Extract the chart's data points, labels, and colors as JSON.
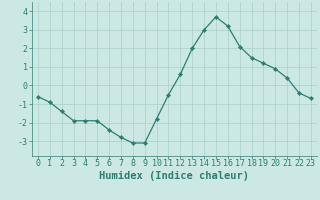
{
  "x": [
    0,
    1,
    2,
    3,
    4,
    5,
    6,
    7,
    8,
    9,
    10,
    11,
    12,
    13,
    14,
    15,
    16,
    17,
    18,
    19,
    20,
    21,
    22,
    23
  ],
  "y": [
    -0.6,
    -0.9,
    -1.4,
    -1.9,
    -1.9,
    -1.9,
    -2.4,
    -2.8,
    -3.1,
    -3.1,
    -1.8,
    -0.5,
    0.6,
    2.0,
    3.0,
    3.7,
    3.2,
    2.1,
    1.5,
    1.2,
    0.9,
    0.4,
    -0.4,
    -0.7
  ],
  "xlabel": "Humidex (Indice chaleur)",
  "ylim": [
    -3.8,
    4.5
  ],
  "xlim": [
    -0.5,
    23.5
  ],
  "yticks": [
    -3,
    -2,
    -1,
    0,
    1,
    2,
    3,
    4
  ],
  "xticks": [
    0,
    1,
    2,
    3,
    4,
    5,
    6,
    7,
    8,
    9,
    10,
    11,
    12,
    13,
    14,
    15,
    16,
    17,
    18,
    19,
    20,
    21,
    22,
    23
  ],
  "line_color": "#2e7d72",
  "marker_color": "#2e7d72",
  "bg_color": "#cce8e4",
  "grid_color": "#aacfca",
  "axis_color": "#2e7d72",
  "tick_color": "#2e7d72",
  "label_color": "#2e7d72",
  "xlabel_fontsize": 7.5,
  "tick_fontsize": 6.0
}
